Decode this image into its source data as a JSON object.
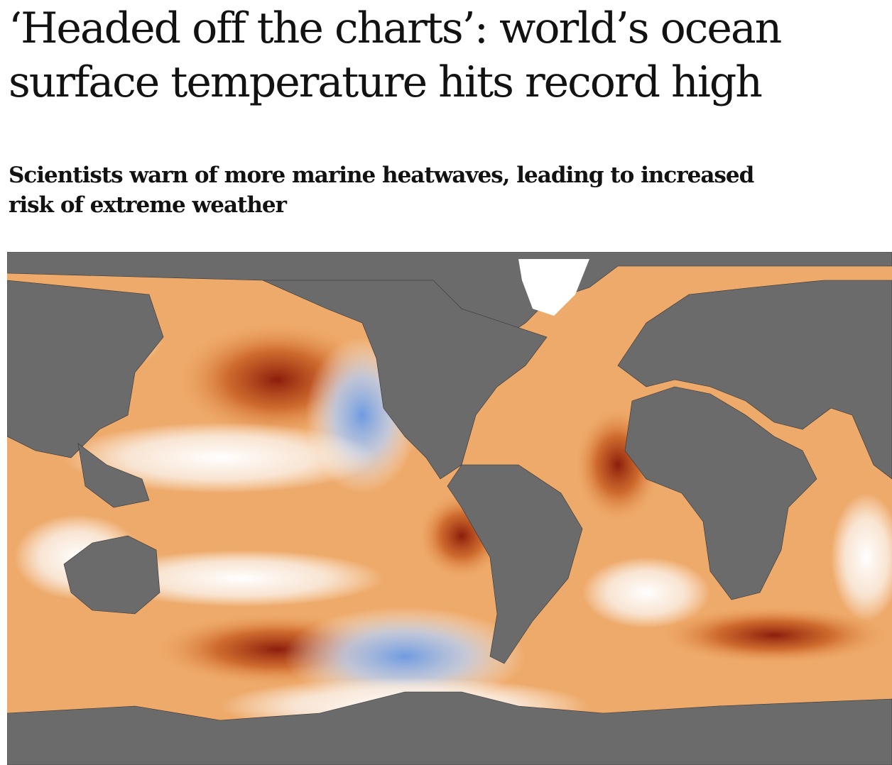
{
  "article": {
    "headline": "‘Headed off the charts’: world’s ocean surface temperature hits record high",
    "standfirst": "Scientists warn of more marine heatwaves, leading to increased risk of extreme weather"
  }
}
